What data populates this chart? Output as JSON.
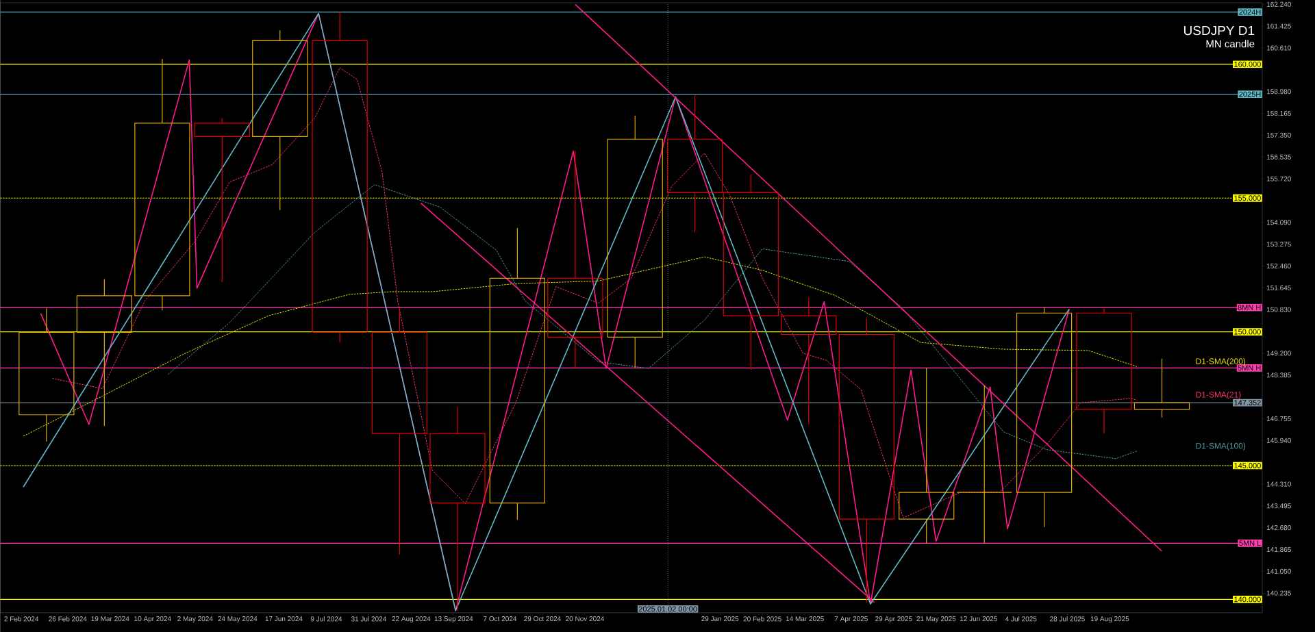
{
  "chart_data": {
    "type": "candlestick",
    "title": "USDJPY D1",
    "subtitle": "MN candle",
    "x": [
      "2024-02-15",
      "2024-03-16",
      "2024-04-15",
      "2024-05-16",
      "2024-06-15",
      "2024-07-16",
      "2024-08-16",
      "2024-09-15",
      "2024-10-16",
      "2024-11-15",
      "2024-12-16",
      "2025-01-16",
      "2025-02-14",
      "2025-03-16",
      "2025-04-15",
      "2025-05-16",
      "2025-06-15",
      "2025-07-16",
      "2025-08-16",
      "2025-09-15"
    ],
    "ohlc": [
      [
        146.9,
        150.88,
        145.9,
        149.98
      ],
      [
        149.98,
        151.97,
        146.48,
        151.35
      ],
      [
        151.35,
        160.2,
        150.8,
        157.8
      ],
      [
        157.8,
        157.99,
        151.86,
        157.3
      ],
      [
        157.3,
        161.27,
        154.55,
        160.88
      ],
      [
        160.88,
        161.95,
        149.6,
        149.98
      ],
      [
        149.98,
        150.88,
        141.68,
        146.2
      ],
      [
        146.2,
        147.2,
        139.58,
        143.6
      ],
      [
        143.6,
        153.88,
        142.97,
        152.0
      ],
      [
        152.0,
        156.75,
        148.65,
        149.8
      ],
      [
        149.8,
        158.08,
        148.65,
        157.2
      ],
      [
        157.2,
        158.88,
        153.72,
        155.2
      ],
      [
        155.2,
        155.88,
        148.58,
        150.6
      ],
      [
        150.6,
        151.3,
        146.54,
        149.9
      ],
      [
        149.9,
        150.49,
        139.89,
        143.0
      ],
      [
        143.0,
        148.65,
        142.1,
        144.0
      ],
      [
        144.0,
        148.0,
        142.1,
        144.0
      ],
      [
        144.0,
        150.91,
        142.7,
        150.7
      ],
      [
        150.7,
        150.91,
        146.2,
        147.1
      ],
      [
        147.1,
        149.0,
        146.8,
        147.35
      ]
    ],
    "colors": [
      "#e0a800",
      "#e0a800",
      "#e0a800",
      "#e00000",
      "#e0a800",
      "#e00000",
      "#e00000",
      "#e00000",
      "#e0a800",
      "#e00000",
      "#e0a800",
      "#e00000",
      "#e00000",
      "#e00000",
      "#e00000",
      "#e0a800",
      "#e0a800",
      "#e0a800",
      "#e00000",
      "#e0a800"
    ],
    "series": [
      {
        "type": "line",
        "name": "D1-SMA(200)",
        "color": "#e6e600",
        "line_style": "dashed",
        "x": [
          "2024-02-03",
          "2024-03-15",
          "2024-04-27",
          "2024-06-09",
          "2024-07-21",
          "2024-08-12",
          "2024-09-02",
          "2024-10-15",
          "2024-11-27",
          "2025-01-21",
          "2025-02-20",
          "2025-03-30",
          "2025-05-13",
          "2025-06-25",
          "2025-08-08",
          "2025-09-02"
        ],
        "values": [
          146.1,
          147.6,
          149.2,
          150.6,
          151.4,
          151.5,
          151.5,
          151.8,
          151.9,
          152.8,
          152.3,
          151.35,
          149.6,
          149.35,
          149.3,
          148.7
        ]
      },
      {
        "type": "line",
        "name": "D1-SMA(21)",
        "color": "#ff3366",
        "line_style": "dashed",
        "x": [
          "2024-02-18",
          "2024-03-15",
          "2024-04-06",
          "2024-05-02",
          "2024-05-20",
          "2024-06-11",
          "2024-07-03",
          "2024-07-16",
          "2024-07-25",
          "2024-08-07",
          "2024-08-15",
          "2024-09-02",
          "2024-09-19",
          "2024-10-15",
          "2024-11-05",
          "2024-11-27",
          "2024-12-14",
          "2025-01-04",
          "2025-01-21",
          "2025-02-03",
          "2025-02-20",
          "2025-03-13",
          "2025-03-25",
          "2025-04-12",
          "2025-05-04",
          "2025-06-03",
          "2025-06-23",
          "2025-07-17",
          "2025-08-04",
          "2025-08-30",
          "2025-09-02"
        ],
        "values": [
          148.26,
          147.88,
          151.16,
          153.38,
          155.6,
          156.25,
          157.99,
          159.87,
          159.43,
          155.94,
          151.16,
          144.82,
          143.58,
          147.32,
          151.69,
          151.07,
          152.0,
          155.44,
          156.68,
          155.12,
          152.0,
          149.2,
          148.94,
          147.85,
          143.05,
          144.01,
          144.01,
          145.76,
          147.35,
          147.51,
          147.45
        ]
      },
      {
        "type": "line",
        "name": "D1-SMA(100)",
        "color": "#4f9a9a",
        "line_style": "dashed",
        "x": [
          "2024-04-18",
          "2024-05-20",
          "2024-07-03",
          "2024-08-03",
          "2024-09-06",
          "2024-10-05",
          "2024-10-20",
          "2024-11-27",
          "2024-12-23",
          "2025-01-21",
          "2025-02-20",
          "2025-04-06",
          "2025-05-04",
          "2025-06-25",
          "2025-07-17",
          "2025-08-22",
          "2025-09-02"
        ],
        "values": [
          148.41,
          150.35,
          153.72,
          155.5,
          154.66,
          153.06,
          151.16,
          148.88,
          148.63,
          150.44,
          153.1,
          152.63,
          150.85,
          146.26,
          145.6,
          145.26,
          145.54
        ]
      },
      {
        "type": "line",
        "color": "#ff1a8c",
        "x": [
          "2024-02-12",
          "2024-03-08",
          "2024-04-29",
          "2024-05-03",
          "2024-07-05",
          "2024-09-14",
          "2024-11-14",
          "2024-12-01",
          "2025-01-06",
          "2025-03-05",
          "2025-03-24",
          "2025-04-17",
          "2025-05-08",
          "2025-05-21",
          "2025-06-18",
          "2025-06-27",
          "2025-07-29"
        ],
        "values": [
          150.69,
          146.54,
          160.16,
          151.63,
          161.9,
          139.58,
          156.75,
          148.63,
          158.78,
          146.7,
          151.13,
          139.83,
          148.57,
          142.17,
          147.94,
          142.64,
          150.85
        ]
      },
      {
        "type": "line",
        "color": "#5fb8c8",
        "x": [
          "2024-02-03",
          "2024-07-05",
          "2024-09-14",
          "2025-01-06",
          "2025-04-17",
          "2025-07-29"
        ],
        "values": [
          144.2,
          161.9,
          139.58,
          158.78,
          139.83,
          150.85
        ]
      },
      {
        "type": "line",
        "color": "#ff1a8c",
        "x": [
          "2024-11-15",
          "2025-09-15"
        ],
        "values": [
          162.24,
          141.8
        ]
      },
      {
        "type": "line",
        "color": "#ff1a8c",
        "x": [
          "2024-08-27",
          "2025-04-19"
        ],
        "values": [
          154.81,
          139.89
        ]
      }
    ],
    "ref_lines": [
      {
        "axis": "y",
        "value": 160,
        "label": "160.000",
        "color": "#ffff00"
      },
      {
        "axis": "y",
        "value": 155,
        "label": "155.000",
        "color": "#ffff00",
        "line_style": "dashed"
      },
      {
        "axis": "y",
        "value": 150,
        "label": "150.000",
        "color": "#ffff00"
      },
      {
        "axis": "y",
        "value": 145,
        "label": "145.000",
        "color": "#ffff00",
        "line_style": "dashed"
      },
      {
        "axis": "y",
        "value": 140,
        "label": "140.000",
        "color": "#ffff00"
      },
      {
        "axis": "y",
        "value": 147.352,
        "label": "147.352",
        "color": "#7f93a5"
      },
      {
        "axis": "y",
        "value": 148.65,
        "label": "5MN H",
        "color": "#ff3fb0"
      },
      {
        "axis": "y",
        "value": 161.95,
        "label": "2024H",
        "color": "#5fb8c8"
      },
      {
        "axis": "y",
        "value": 158.88,
        "label": "2025H",
        "color": "#5fb8c8"
      },
      {
        "axis": "y",
        "value": 150.91,
        "label": "8MN H",
        "color": "#ff3fb0"
      },
      {
        "axis": "y",
        "value": 142.1,
        "label": "5MN L",
        "color": "#ff3fb0"
      },
      {
        "axis": "x",
        "value": "2025-01-02",
        "label": "2025.01.02 00:00",
        "color": "#7f93a5",
        "line_style": "dotted"
      }
    ],
    "xlim": [
      "2024-01-22",
      "2025-11-06"
    ],
    "ylim": [
      139.5,
      162.3
    ],
    "xticks": [
      {
        "value": "2024-02-02",
        "label": "2 Feb 2024"
      },
      {
        "value": "2024-02-26",
        "label": "26 Feb 2024"
      },
      {
        "value": "2024-03-19",
        "label": "19 Mar 2024"
      },
      {
        "value": "2024-04-10",
        "label": "10 Apr 2024"
      },
      {
        "value": "2024-05-02",
        "label": "2 May 2024"
      },
      {
        "value": "2024-05-24",
        "label": "24 May 2024"
      },
      {
        "value": "2024-06-17",
        "label": "17 Jun 2024"
      },
      {
        "value": "2024-07-09",
        "label": "9 Jul 2024"
      },
      {
        "value": "2024-07-31",
        "label": "31 Jul 2024"
      },
      {
        "value": "2024-08-22",
        "label": "22 Aug 2024"
      },
      {
        "value": "2024-09-13",
        "label": "13 Sep 2024"
      },
      {
        "value": "2024-10-07",
        "label": "7 Oct 2024"
      },
      {
        "value": "2024-10-29",
        "label": "29 Oct 2024"
      },
      {
        "value": "2024-11-20",
        "label": "20 Nov 2024"
      },
      {
        "value": "2025-01-29",
        "label": "29 Jan 2025"
      },
      {
        "value": "2025-02-20",
        "label": "20 Feb 2025"
      },
      {
        "value": "2025-03-14",
        "label": "14 Mar 2025"
      },
      {
        "value": "2025-04-07",
        "label": "7 Apr 2025"
      },
      {
        "value": "2025-04-29",
        "label": "29 Apr 2025"
      },
      {
        "value": "2025-05-21",
        "label": "21 May 2025"
      },
      {
        "value": "2025-06-12",
        "label": "12 Jun 2025"
      },
      {
        "value": "2025-07-04",
        "label": "4 Jul 2025"
      },
      {
        "value": "2025-07-28",
        "label": "28 Jul 2025"
      },
      {
        "value": "2025-08-19",
        "label": "19 Aug 2025"
      }
    ],
    "yticks": [
      {
        "value": 162.24,
        "label": "162.240"
      },
      {
        "value": 161.425,
        "label": "161.425"
      },
      {
        "value": 160.61,
        "label": "160.610"
      },
      {
        "value": 158.98,
        "label": "158.980"
      },
      {
        "value": 158.165,
        "label": "158.165"
      },
      {
        "value": 157.35,
        "label": "157.350"
      },
      {
        "value": 156.535,
        "label": "156.535"
      },
      {
        "value": 155.72,
        "label": "155.720"
      },
      {
        "value": 154.09,
        "label": "154.090"
      },
      {
        "value": 153.275,
        "label": "153.275"
      },
      {
        "value": 152.46,
        "label": "152.460"
      },
      {
        "value": 151.645,
        "label": "151.645"
      },
      {
        "value": 150.83,
        "label": "150.830"
      },
      {
        "value": 149.2,
        "label": "149.200"
      },
      {
        "value": 148.385,
        "label": "148.385"
      },
      {
        "value": 146.755,
        "label": "146.755"
      },
      {
        "value": 145.94,
        "label": "145.940"
      },
      {
        "value": 144.31,
        "label": "144.310"
      },
      {
        "value": 143.495,
        "label": "143.495"
      },
      {
        "value": 142.68,
        "label": "142.680"
      },
      {
        "value": 141.865,
        "label": "141.865"
      },
      {
        "value": 141.05,
        "label": "141.050"
      },
      {
        "value": 140.235,
        "label": "140.235"
      }
    ]
  }
}
